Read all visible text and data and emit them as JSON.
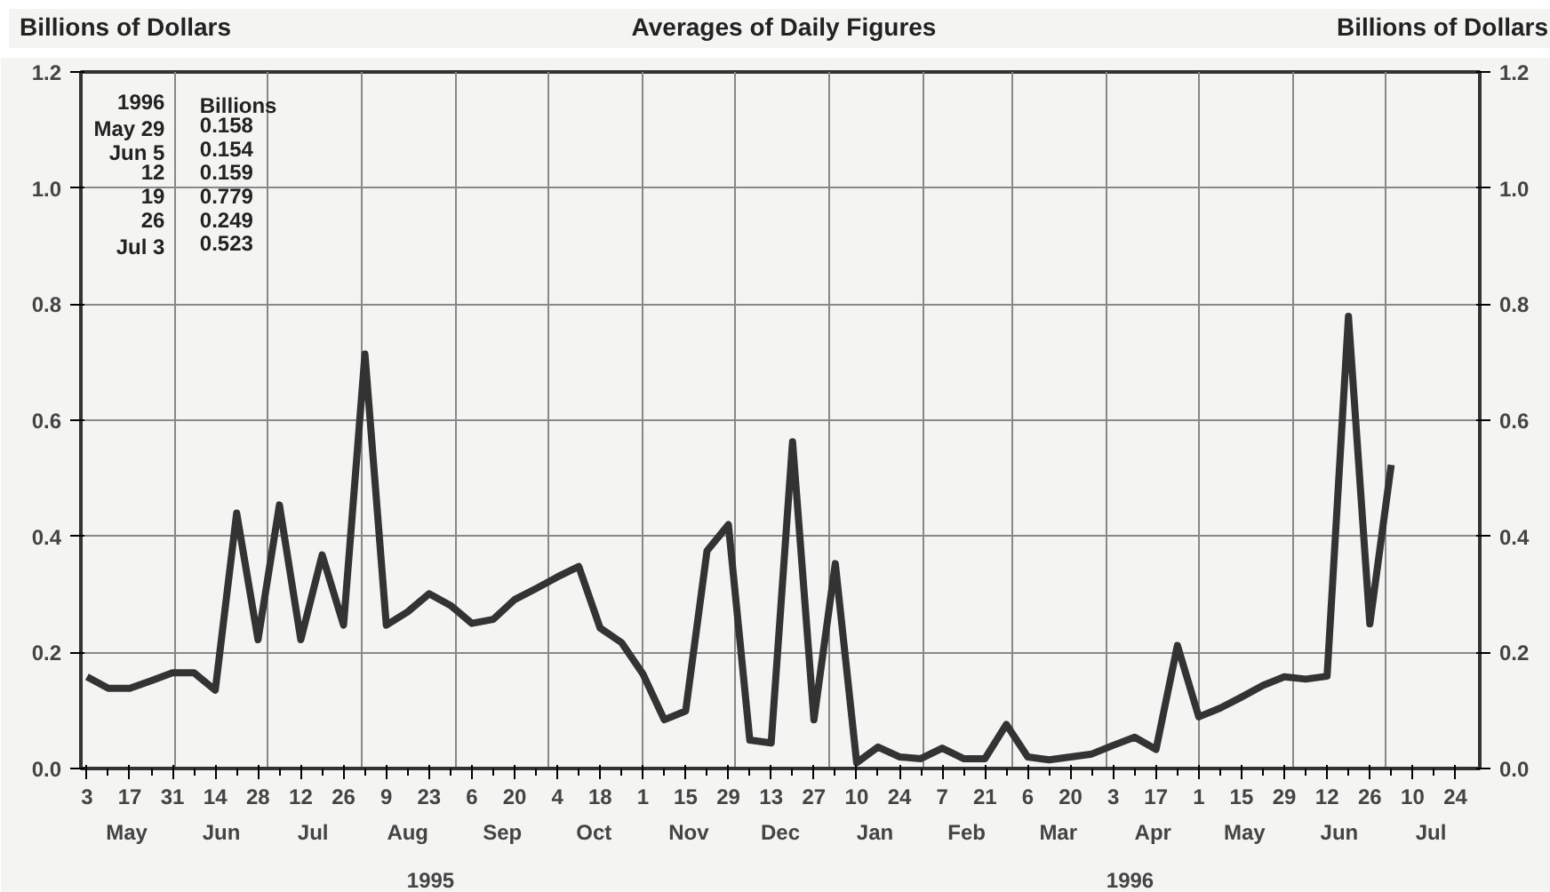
{
  "chart_data": {
    "type": "line",
    "title": "Averages of Daily Figures",
    "ylabel": "Billions of Dollars",
    "y2label": "Billions of Dollars",
    "x": [
      "1995-05-03",
      "1995-05-10",
      "1995-05-17",
      "1995-05-24",
      "1995-05-31",
      "1995-06-07",
      "1995-06-14",
      "1995-06-21",
      "1995-06-28",
      "1995-07-05",
      "1995-07-12",
      "1995-07-19",
      "1995-07-26",
      "1995-08-02",
      "1995-08-09",
      "1995-08-16",
      "1995-08-23",
      "1995-08-30",
      "1995-09-06",
      "1995-09-13",
      "1995-09-20",
      "1995-09-27",
      "1995-10-04",
      "1995-10-11",
      "1995-10-18",
      "1995-10-25",
      "1995-11-01",
      "1995-11-08",
      "1995-11-15",
      "1995-11-22",
      "1995-11-29",
      "1995-12-06",
      "1995-12-13",
      "1995-12-20",
      "1995-12-27",
      "1996-01-03",
      "1996-01-10",
      "1996-01-17",
      "1996-01-24",
      "1996-01-31",
      "1996-02-07",
      "1996-02-14",
      "1996-02-21",
      "1996-02-28",
      "1996-03-06",
      "1996-03-13",
      "1996-03-20",
      "1996-03-27",
      "1996-04-03",
      "1996-04-10",
      "1996-04-17",
      "1996-04-24",
      "1996-05-01",
      "1996-05-08",
      "1996-05-15",
      "1996-05-22",
      "1996-05-29",
      "1996-06-05",
      "1996-06-12",
      "1996-06-19",
      "1996-06-26",
      "1996-07-03"
    ],
    "series": [
      {
        "color": "#333333",
        "values": [
          0.158,
          0.138,
          0.138,
          0.151,
          0.165,
          0.165,
          0.135,
          0.44,
          0.222,
          0.454,
          0.222,
          0.368,
          0.247,
          0.714,
          0.247,
          0.27,
          0.301,
          0.281,
          0.25,
          0.257,
          0.291,
          0.31,
          0.33,
          0.348,
          0.242,
          0.217,
          0.163,
          0.084,
          0.099,
          0.375,
          0.42,
          0.049,
          0.044,
          0.563,
          0.084,
          0.353,
          0.01,
          0.037,
          0.02,
          0.017,
          0.035,
          0.017,
          0.017,
          0.076,
          0.02,
          0.015,
          0.02,
          0.025,
          0.04,
          0.054,
          0.033,
          0.212,
          0.089,
          0.104,
          0.123,
          0.143,
          0.158,
          0.154,
          0.159,
          0.779,
          0.249,
          0.523
        ]
      }
    ],
    "xlim": [
      "1995-05-01",
      "1996-08-01"
    ],
    "xticks": [
      {
        "value": "1995-05-03",
        "label": "3"
      },
      {
        "value": "1995-05-10",
        "label": null
      },
      {
        "value": "1995-05-17",
        "label": "17"
      },
      {
        "value": "1995-05-24",
        "label": null
      },
      {
        "value": "1995-05-31",
        "label": "31"
      },
      {
        "value": "1995-06-07",
        "label": null
      },
      {
        "value": "1995-06-14",
        "label": "14"
      },
      {
        "value": "1995-06-21",
        "label": null
      },
      {
        "value": "1995-06-28",
        "label": "28"
      },
      {
        "value": "1995-07-05",
        "label": null
      },
      {
        "value": "1995-07-12",
        "label": "12"
      },
      {
        "value": "1995-07-19",
        "label": null
      },
      {
        "value": "1995-07-26",
        "label": "26"
      },
      {
        "value": "1995-08-02",
        "label": null
      },
      {
        "value": "1995-08-09",
        "label": "9"
      },
      {
        "value": "1995-08-16",
        "label": null
      },
      {
        "value": "1995-08-23",
        "label": "23"
      },
      {
        "value": "1995-08-30",
        "label": null
      },
      {
        "value": "1995-09-06",
        "label": "6"
      },
      {
        "value": "1995-09-13",
        "label": null
      },
      {
        "value": "1995-09-20",
        "label": "20"
      },
      {
        "value": "1995-09-27",
        "label": null
      },
      {
        "value": "1995-10-04",
        "label": "4"
      },
      {
        "value": "1995-10-11",
        "label": null
      },
      {
        "value": "1995-10-18",
        "label": "18"
      },
      {
        "value": "1995-10-25",
        "label": null
      },
      {
        "value": "1995-11-01",
        "label": "1"
      },
      {
        "value": "1995-11-08",
        "label": null
      },
      {
        "value": "1995-11-15",
        "label": "15"
      },
      {
        "value": "1995-11-22",
        "label": null
      },
      {
        "value": "1995-11-29",
        "label": "29"
      },
      {
        "value": "1995-12-06",
        "label": null
      },
      {
        "value": "1995-12-13",
        "label": "13"
      },
      {
        "value": "1995-12-20",
        "label": null
      },
      {
        "value": "1995-12-27",
        "label": "27"
      },
      {
        "value": "1996-01-03",
        "label": null
      },
      {
        "value": "1996-01-10",
        "label": "10"
      },
      {
        "value": "1996-01-17",
        "label": null
      },
      {
        "value": "1996-01-24",
        "label": "24"
      },
      {
        "value": "1996-01-31",
        "label": null
      },
      {
        "value": "1996-02-07",
        "label": "7"
      },
      {
        "value": "1996-02-14",
        "label": null
      },
      {
        "value": "1996-02-21",
        "label": "21"
      },
      {
        "value": "1996-02-28",
        "label": null
      },
      {
        "value": "1996-03-06",
        "label": "6"
      },
      {
        "value": "1996-03-13",
        "label": null
      },
      {
        "value": "1996-03-20",
        "label": "20"
      },
      {
        "value": "1996-03-27",
        "label": null
      },
      {
        "value": "1996-04-03",
        "label": "3"
      },
      {
        "value": "1996-04-10",
        "label": null
      },
      {
        "value": "1996-04-17",
        "label": "17"
      },
      {
        "value": "1996-04-24",
        "label": null
      },
      {
        "value": "1996-05-01",
        "label": "1"
      },
      {
        "value": "1996-05-08",
        "label": null
      },
      {
        "value": "1996-05-15",
        "label": "15"
      },
      {
        "value": "1996-05-22",
        "label": null
      },
      {
        "value": "1996-05-29",
        "label": "29"
      },
      {
        "value": "1996-06-05",
        "label": null
      },
      {
        "value": "1996-06-12",
        "label": "12"
      },
      {
        "value": "1996-06-19",
        "label": null
      },
      {
        "value": "1996-06-26",
        "label": "26"
      },
      {
        "value": "1996-07-03",
        "label": null
      },
      {
        "value": "1996-07-10",
        "label": "10"
      },
      {
        "value": "1996-07-17",
        "label": null
      },
      {
        "value": "1996-07-24",
        "label": "24"
      }
    ],
    "x2lim": [
      "1995-05-01",
      "1996-08-01"
    ],
    "x2ticks": [
      {
        "value": "1995-05-16",
        "label": "May"
      },
      {
        "value": "1995-06-01",
        "label": null
      },
      {
        "value": "1995-06-16",
        "label": "Jun"
      },
      {
        "value": "1995-07-01",
        "label": null
      },
      {
        "value": "1995-07-16",
        "label": "Jul"
      },
      {
        "value": "1995-08-01",
        "label": null
      },
      {
        "value": "1995-08-16",
        "label": "Aug"
      },
      {
        "value": "1995-09-01",
        "label": null
      },
      {
        "value": "1995-09-16",
        "label": "Sep"
      },
      {
        "value": "1995-10-01",
        "label": null
      },
      {
        "value": "1995-10-16",
        "label": "Oct"
      },
      {
        "value": "1995-11-01",
        "label": null
      },
      {
        "value": "1995-11-16",
        "label": "Nov"
      },
      {
        "value": "1995-12-01",
        "label": null
      },
      {
        "value": "1995-12-16",
        "label": "Dec"
      },
      {
        "value": "1996-01-01",
        "label": null
      },
      {
        "value": "1996-01-16",
        "label": "Jan"
      },
      {
        "value": "1996-02-01",
        "label": null
      },
      {
        "value": "1996-02-15",
        "label": "Feb"
      },
      {
        "value": "1996-03-01",
        "label": null
      },
      {
        "value": "1996-03-16",
        "label": "Mar"
      },
      {
        "value": "1996-04-01",
        "label": null
      },
      {
        "value": "1996-04-16",
        "label": "Apr"
      },
      {
        "value": "1996-05-01",
        "label": null
      },
      {
        "value": "1996-05-16",
        "label": "May"
      },
      {
        "value": "1996-06-01",
        "label": null
      },
      {
        "value": "1996-06-16",
        "label": "Jun"
      },
      {
        "value": "1996-07-01",
        "label": null
      },
      {
        "value": "1996-07-16",
        "label": "Jul"
      }
    ],
    "ylim": [
      0,
      1.2
    ],
    "yticks": [
      {
        "value": 0,
        "label": "0.0"
      },
      {
        "value": 0.2,
        "label": "0.2"
      },
      {
        "value": 0.4,
        "label": "0.4"
      },
      {
        "value": 0.6,
        "label": "0.6"
      },
      {
        "value": 0.8,
        "label": "0.8"
      },
      {
        "value": 1.0,
        "label": "1.0"
      },
      {
        "value": 1.2,
        "label": "1.2"
      }
    ],
    "y2lim": [
      0,
      1.2
    ],
    "y2ticks": [
      {
        "value": 0,
        "label": "0.0"
      },
      {
        "value": 0.2,
        "label": "0.2"
      },
      {
        "value": 0.4,
        "label": "0.4"
      },
      {
        "value": 0.6,
        "label": "0.6"
      },
      {
        "value": 0.8,
        "label": "0.8"
      },
      {
        "value": 1.0,
        "label": "1.0"
      },
      {
        "value": 1.2,
        "label": "1.2"
      }
    ],
    "grid": true,
    "line_style": "solid",
    "marker": "none",
    "annotations": [
      "1996 Billions",
      "May 29 0.158",
      "Jun 5 0.154",
      "12 0.159",
      "19 0.779",
      "26 0.249",
      "Jul 3 0.523",
      "1995",
      "1996"
    ]
  }
}
